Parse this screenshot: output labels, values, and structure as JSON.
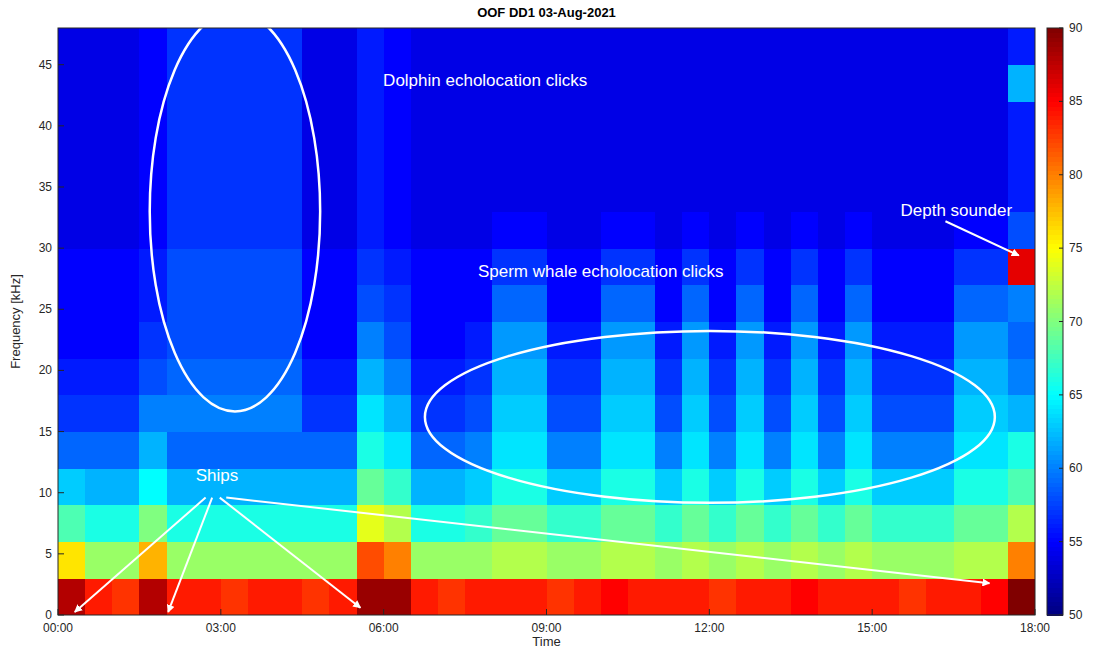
{
  "chart_data": {
    "type": "heatmap",
    "title": "OOF DD1   03-Aug-2021",
    "x_label": "Time",
    "y_label": "Frequency [kHz]",
    "xlim": [
      0,
      18
    ],
    "xticks": [
      {
        "value": 0,
        "label": "00:00"
      },
      {
        "value": 3,
        "label": "03:00"
      },
      {
        "value": 6,
        "label": "06:00"
      },
      {
        "value": 9,
        "label": "09:00"
      },
      {
        "value": 12,
        "label": "12:00"
      },
      {
        "value": 15,
        "label": "15:00"
      },
      {
        "value": 18,
        "label": "18:00"
      }
    ],
    "ylim": [
      0,
      48
    ],
    "yticks": [
      0,
      5,
      10,
      15,
      20,
      25,
      30,
      35,
      40,
      45
    ],
    "x_bins": [
      0,
      0.5,
      1,
      1.5,
      2,
      2.5,
      3,
      3.5,
      4,
      4.5,
      5,
      5.5,
      6,
      6.5,
      7,
      7.5,
      8,
      8.5,
      9,
      9.5,
      10,
      10.5,
      11,
      11.5,
      12,
      12.5,
      13,
      13.5,
      14,
      14.5,
      15,
      15.5,
      16,
      16.5,
      17,
      17.5,
      18
    ],
    "y_bins": [
      0,
      3,
      6,
      9,
      12,
      15,
      18,
      21,
      24,
      27,
      30,
      33,
      36,
      39,
      42,
      45,
      48
    ],
    "cells": [
      [
        88,
        84,
        83,
        88,
        84,
        84,
        83,
        84,
        84,
        83,
        84,
        89,
        89,
        84,
        83,
        84,
        84,
        84,
        83,
        84,
        85,
        84,
        84,
        84,
        83,
        84,
        84,
        85,
        84,
        84,
        84,
        83,
        84,
        84,
        85,
        90
      ],
      [
        76,
        71,
        71,
        78,
        71,
        71,
        71,
        71,
        71,
        71,
        71,
        82,
        80,
        71,
        71,
        71,
        72,
        72,
        71,
        71,
        72,
        72,
        71,
        72,
        71,
        72,
        71,
        72,
        71,
        72,
        71,
        71,
        71,
        72,
        72,
        80
      ],
      [
        68,
        66,
        66,
        70,
        66,
        66,
        66,
        66,
        66,
        66,
        66,
        74,
        72,
        66,
        66,
        67,
        69,
        69,
        67,
        67,
        69,
        69,
        67,
        69,
        67,
        69,
        67,
        69,
        67,
        69,
        67,
        67,
        67,
        69,
        69,
        72
      ],
      [
        63,
        62,
        62,
        65,
        62,
        62,
        62,
        62,
        62,
        62,
        62,
        69,
        67,
        62,
        62,
        63,
        66,
        66,
        63,
        63,
        66,
        66,
        63,
        66,
        63,
        66,
        63,
        66,
        63,
        66,
        63,
        63,
        63,
        66,
        66,
        68
      ],
      [
        59,
        59,
        59,
        62,
        59,
        59,
        59,
        59,
        59,
        59,
        59,
        66,
        64,
        59,
        59,
        60,
        64,
        64,
        60,
        60,
        64,
        64,
        60,
        64,
        60,
        64,
        60,
        64,
        60,
        64,
        60,
        60,
        60,
        64,
        64,
        66
      ],
      [
        57,
        57,
        57,
        60,
        60,
        60,
        60,
        60,
        60,
        57,
        57,
        64,
        62,
        57,
        57,
        58,
        63,
        63,
        58,
        58,
        63,
        63,
        58,
        63,
        58,
        63,
        58,
        63,
        58,
        63,
        58,
        58,
        58,
        63,
        63,
        62
      ],
      [
        56,
        56,
        56,
        58,
        59,
        59,
        59,
        59,
        59,
        56,
        56,
        62,
        60,
        56,
        56,
        57,
        62,
        62,
        57,
        57,
        62,
        62,
        57,
        62,
        57,
        62,
        57,
        62,
        57,
        62,
        57,
        57,
        57,
        62,
        62,
        60
      ],
      [
        55,
        55,
        55,
        57,
        58,
        58,
        58,
        58,
        58,
        55,
        55,
        60,
        58,
        55,
        55,
        56,
        61,
        61,
        56,
        56,
        61,
        61,
        56,
        61,
        56,
        61,
        56,
        61,
        56,
        61,
        56,
        56,
        56,
        61,
        61,
        59
      ],
      [
        55,
        55,
        55,
        56,
        58,
        58,
        58,
        58,
        58,
        55,
        55,
        58,
        57,
        55,
        55,
        55,
        59,
        59,
        55,
        55,
        59,
        59,
        55,
        59,
        55,
        59,
        55,
        59,
        55,
        59,
        55,
        55,
        55,
        59,
        59,
        60
      ],
      [
        55,
        55,
        55,
        56,
        58,
        58,
        58,
        58,
        58,
        55,
        55,
        57,
        56,
        55,
        55,
        55,
        57,
        57,
        55,
        55,
        57,
        57,
        55,
        57,
        55,
        57,
        55,
        57,
        55,
        57,
        55,
        55,
        55,
        57,
        57,
        86
      ],
      [
        54,
        54,
        54,
        55,
        57,
        57,
        57,
        57,
        57,
        54,
        54,
        56,
        55,
        54,
        54,
        54,
        55,
        55,
        54,
        54,
        55,
        55,
        54,
        55,
        54,
        55,
        54,
        55,
        54,
        55,
        54,
        54,
        54,
        55,
        55,
        58
      ],
      [
        54,
        54,
        54,
        55,
        57,
        57,
        57,
        57,
        57,
        54,
        54,
        56,
        55,
        54,
        54,
        54,
        54,
        54,
        54,
        54,
        54,
        54,
        54,
        54,
        54,
        54,
        54,
        54,
        54,
        54,
        54,
        54,
        54,
        54,
        54,
        56
      ],
      [
        54,
        54,
        54,
        55,
        57,
        57,
        57,
        57,
        57,
        54,
        54,
        56,
        55,
        54,
        54,
        54,
        54,
        54,
        54,
        54,
        54,
        54,
        54,
        54,
        54,
        54,
        54,
        54,
        54,
        54,
        54,
        54,
        54,
        54,
        54,
        56
      ],
      [
        54,
        54,
        54,
        55,
        57,
        57,
        57,
        57,
        57,
        54,
        54,
        56,
        55,
        54,
        54,
        54,
        54,
        54,
        54,
        54,
        54,
        54,
        54,
        54,
        54,
        54,
        54,
        54,
        54,
        54,
        54,
        54,
        54,
        54,
        54,
        56
      ],
      [
        54,
        54,
        54,
        55,
        57,
        57,
        57,
        57,
        57,
        54,
        54,
        56,
        55,
        54,
        54,
        54,
        54,
        54,
        54,
        54,
        54,
        54,
        54,
        54,
        54,
        54,
        54,
        54,
        54,
        54,
        54,
        54,
        54,
        54,
        54,
        62
      ],
      [
        54,
        54,
        54,
        55,
        57,
        57,
        57,
        57,
        57,
        54,
        54,
        56,
        55,
        54,
        54,
        54,
        54,
        54,
        54,
        54,
        54,
        54,
        54,
        54,
        54,
        54,
        54,
        54,
        54,
        54,
        54,
        54,
        54,
        54,
        54,
        56
      ]
    ],
    "colorbar_lim": [
      50,
      90
    ],
    "colorbar_ticks": [
      50,
      55,
      60,
      65,
      70,
      75,
      80,
      85,
      90
    ],
    "annotations": [
      {
        "text": "Dolphin echolocation clicks",
        "x": 7.87,
        "y": 43.6
      },
      {
        "text": "Sperm whale echolocation clicks",
        "x": 10.0,
        "y": 28.0
      },
      {
        "text": "Depth sounder",
        "x": 16.55,
        "y": 33.0
      },
      {
        "text": "Ships",
        "x": 2.93,
        "y": 11.3
      }
    ]
  }
}
